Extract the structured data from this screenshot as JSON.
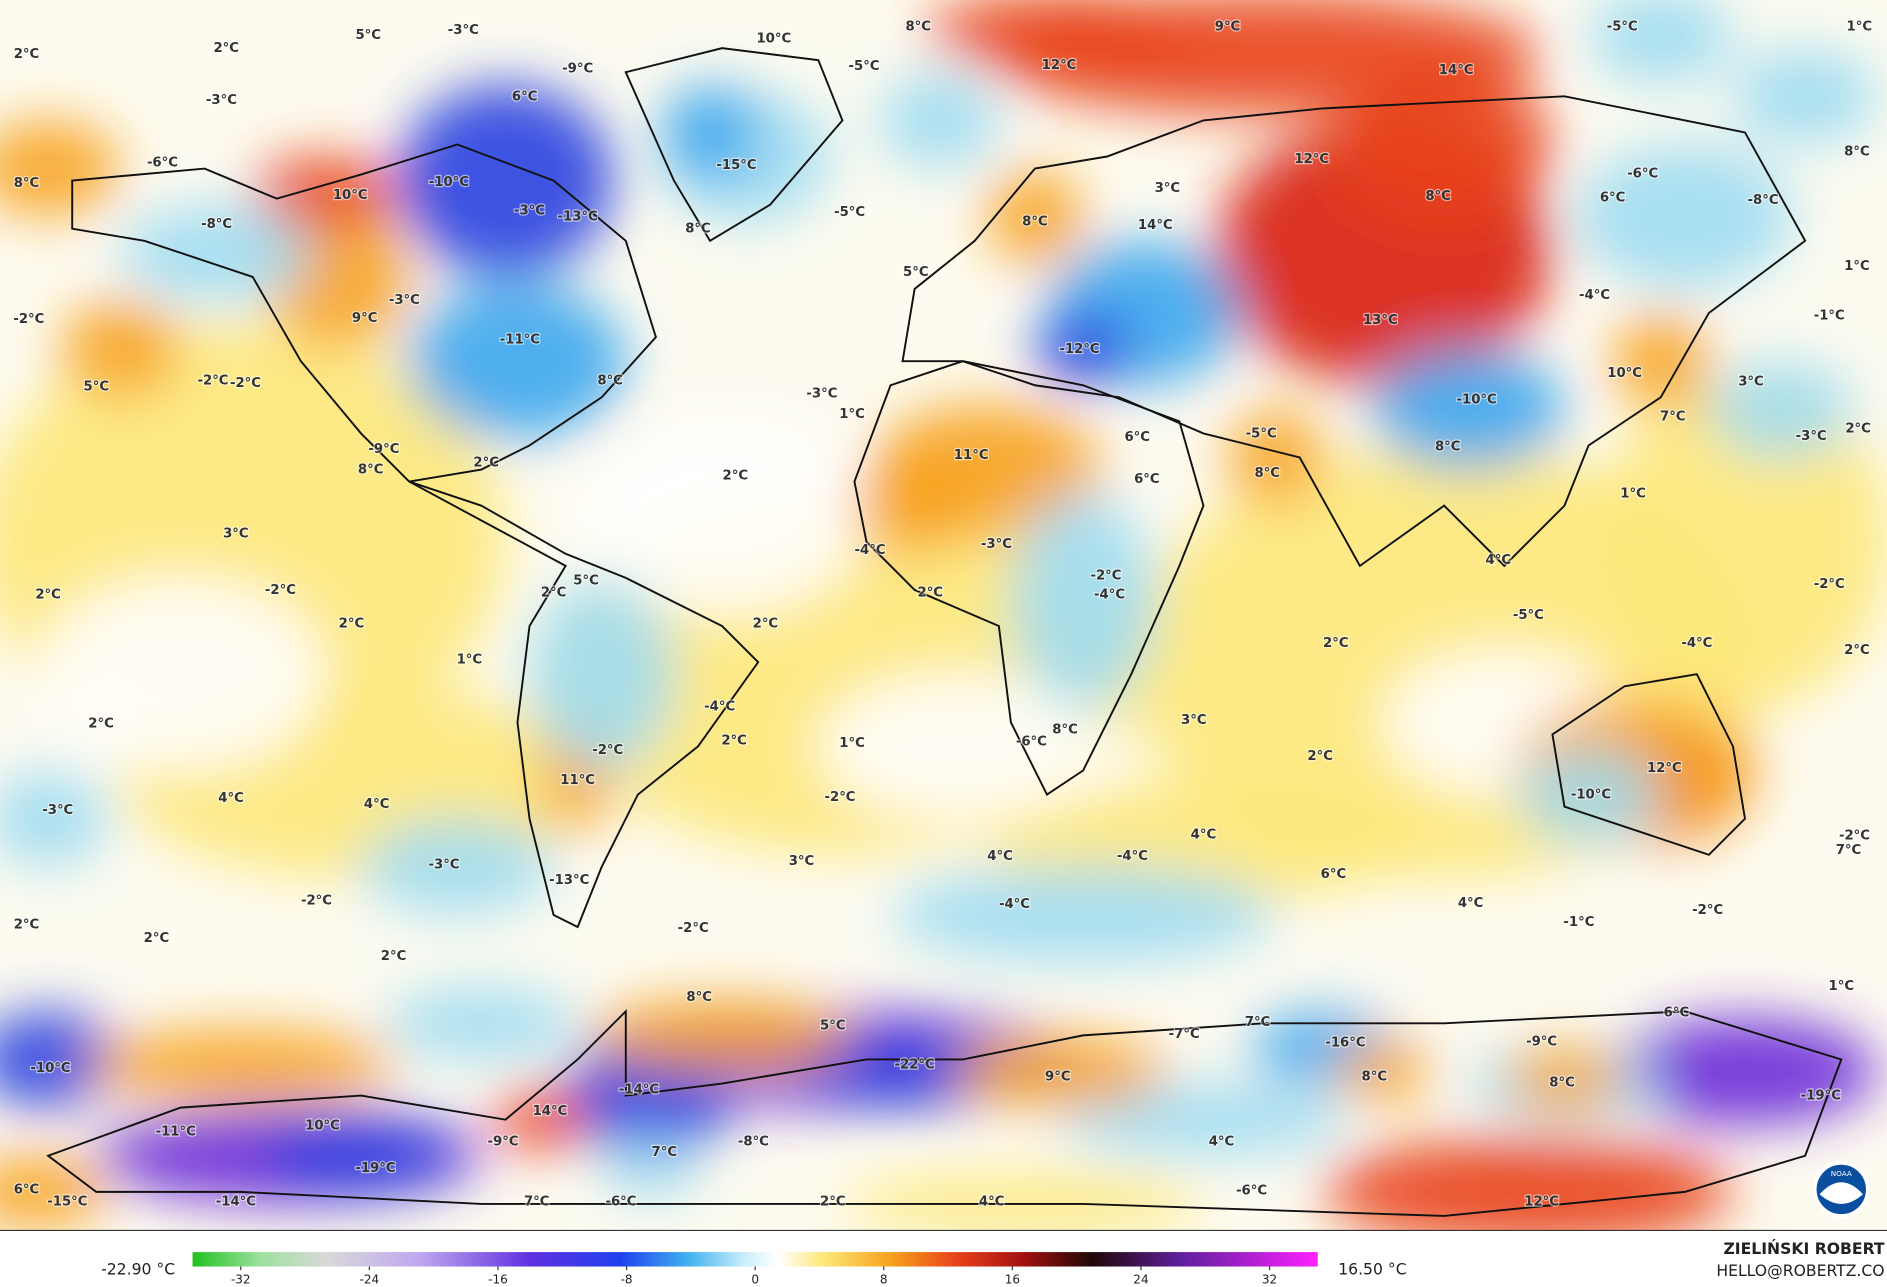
{
  "map": {
    "labels": [
      "2°C",
      "2°C",
      "5°C",
      "-3°C",
      "10°C",
      "8°C",
      "9°C",
      "-5°C",
      "1°C",
      "-3°C",
      "-9°C",
      "6°C",
      "-5°C",
      "12°C",
      "14°C",
      "-6°C",
      "-15°C",
      "12°C",
      "8°C",
      "8°C",
      "10°C",
      "-10°C",
      "-6°C",
      "8°C",
      "6°C",
      "-8°C",
      "3°C",
      "-8°C",
      "-3°C",
      "-13°C",
      "-5°C",
      "8°C",
      "8°C",
      "14°C",
      "5°C",
      "1°C",
      "-3°C",
      "-4°C",
      "-2°C",
      "9°C",
      "-11°C",
      "13°C",
      "-1°C",
      "-12°C",
      "-2°C",
      "-2°C",
      "8°C",
      "-3°C",
      "10°C",
      "3°C",
      "5°C",
      "-10°C",
      "1°C",
      "7°C",
      "2°C",
      "-3°C",
      "-9°C",
      "11°C",
      "-5°C",
      "6°C",
      "8°C",
      "2°C",
      "8°C",
      "2°C",
      "6°C",
      "8°C",
      "1°C",
      "3°C",
      "-4°C",
      "-3°C",
      "-2°C",
      "4°C",
      "-2°C",
      "-4°C",
      "2°C",
      "-2°C",
      "2°C",
      "5°C",
      "2°C",
      "2°C",
      "2°C",
      "-5°C",
      "-4°C",
      "1°C",
      "2°C",
      "2°C",
      "-4°C",
      "3°C",
      "2°C",
      "2°C",
      "1°C",
      "-6°C",
      "8°C",
      "-2°C",
      "2°C",
      "11°C",
      "12°C",
      "-10°C",
      "-2°C",
      "4°C",
      "4°C",
      "-3°C",
      "4°C",
      "4°C",
      "-4°C",
      "3°C",
      "-3°C",
      "6°C",
      "-2°C",
      "7°C",
      "-13°C",
      "-2°C",
      "-4°C",
      "4°C",
      "-2°C",
      "-1°C",
      "2°C",
      "2°C",
      "-2°C",
      "2°C",
      "1°C",
      "8°C",
      "6°C",
      "5°C",
      "7°C",
      "-7°C",
      "-16°C",
      "-9°C",
      "-10°C",
      "-22°C",
      "9°C",
      "8°C",
      "8°C",
      "-14°C",
      "-19°C",
      "-11°C",
      "10°C",
      "14°C",
      "-9°C",
      "-8°C",
      "4°C",
      "7°C",
      "-19°C",
      "6°C",
      "-15°C",
      "-14°C",
      "7°C",
      "-6°C",
      "2°C",
      "4°C",
      "-6°C",
      "12°C"
    ]
  },
  "colorbar": {
    "range": [
      -35,
      35
    ],
    "ticks": [
      -32,
      -24,
      -16,
      -8,
      0,
      8,
      16,
      24,
      32
    ],
    "min_label": "-22.90 °C",
    "max_label": "16.50 °C"
  },
  "credits": {
    "author": "ZIELIŃSKI ROBERT",
    "email": "HELLO@ROBERTZ.CO",
    "logo": "NOAA"
  }
}
